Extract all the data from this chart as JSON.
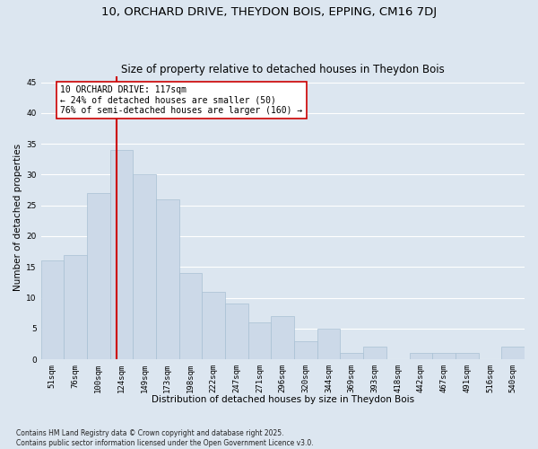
{
  "title1": "10, ORCHARD DRIVE, THEYDON BOIS, EPPING, CM16 7DJ",
  "title2": "Size of property relative to detached houses in Theydon Bois",
  "xlabel": "Distribution of detached houses by size in Theydon Bois",
  "ylabel": "Number of detached properties",
  "categories": [
    "51sqm",
    "76sqm",
    "100sqm",
    "124sqm",
    "149sqm",
    "173sqm",
    "198sqm",
    "222sqm",
    "247sqm",
    "271sqm",
    "296sqm",
    "320sqm",
    "344sqm",
    "369sqm",
    "393sqm",
    "418sqm",
    "442sqm",
    "467sqm",
    "491sqm",
    "516sqm",
    "540sqm"
  ],
  "values": [
    16,
    17,
    27,
    34,
    30,
    26,
    14,
    11,
    9,
    6,
    7,
    3,
    5,
    1,
    2,
    0,
    1,
    1,
    1,
    0,
    2
  ],
  "bar_color": "#ccd9e8",
  "bar_edgecolor": "#a8c0d4",
  "bar_width": 1.0,
  "red_line_index": 2.78,
  "red_line_color": "#cc0000",
  "annotation_text": "10 ORCHARD DRIVE: 117sqm\n← 24% of detached houses are smaller (50)\n76% of semi-detached houses are larger (160) →",
  "annotation_box_color": "#ffffff",
  "annotation_box_edgecolor": "#cc0000",
  "ylim": [
    0,
    46
  ],
  "yticks": [
    0,
    5,
    10,
    15,
    20,
    25,
    30,
    35,
    40,
    45
  ],
  "background_color": "#dce6f0",
  "grid_color": "#ffffff",
  "footnote": "Contains HM Land Registry data © Crown copyright and database right 2025.\nContains public sector information licensed under the Open Government Licence v3.0.",
  "title1_fontsize": 9.5,
  "title2_fontsize": 8.5,
  "axis_label_fontsize": 7.5,
  "tick_fontsize": 6.5,
  "annotation_fontsize": 7.0,
  "footnote_fontsize": 5.5
}
